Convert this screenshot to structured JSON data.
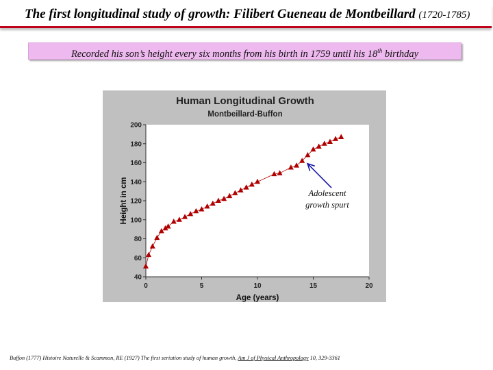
{
  "slide": {
    "title_main": "The first longitudinal study of growth:",
    "title_name": "Filibert Gueneau de Montbeillard",
    "title_years": "(1720-1785)",
    "subtitle_pre": "Recorded his son’s height every six months from his birth in 1759 until his 18",
    "subtitle_sup": "th",
    "subtitle_post": " birthday",
    "reference_pre": "Buffon (1777) Histoire Naturelle & Scammon, RE (1927) The first seriation study of human growth, ",
    "reference_journal": "Am J of Physical Anthropology",
    "reference_post": " 10, 329-3361"
  },
  "colors": {
    "chart_background": "#c0c0c0",
    "marker": "#b00000",
    "line": "#b00000",
    "arrow": "#1a1aa8",
    "title_rule": "#c0001a",
    "subtitle_box": "#eeb9ef"
  },
  "chart_data": {
    "type": "line",
    "title": "Human Longitudinal Growth",
    "subtitle": "Montbeillard-Buffon",
    "xlabel": "Age (years)",
    "ylabel": "Height in cm",
    "xlim": [
      0,
      20
    ],
    "ylim": [
      40,
      200
    ],
    "xticks": [
      0,
      5,
      10,
      15,
      20
    ],
    "yticks": [
      40,
      60,
      80,
      100,
      120,
      140,
      160,
      180,
      200
    ],
    "grid": false,
    "marker": "triangle",
    "series": [
      {
        "x": [
          0.0,
          0.25,
          0.6,
          1.0,
          1.4,
          1.75,
          2.0,
          2.5,
          3.0,
          3.5,
          4.0,
          4.5,
          5.0,
          5.5,
          6.0,
          6.5,
          7.0,
          7.5,
          8.0,
          8.5,
          9.0,
          9.5,
          10.0,
          11.5,
          12.0,
          13.0,
          13.5,
          14.0,
          14.5,
          15.0,
          15.5,
          16.0,
          16.5,
          17.0,
          17.5
        ],
        "y": [
          51,
          63,
          72,
          81,
          88,
          91,
          93,
          98,
          100,
          103,
          106,
          109,
          111,
          114,
          117,
          120,
          122,
          125,
          128,
          131,
          134,
          137,
          140,
          148,
          149,
          155,
          157,
          162,
          168,
          174,
          177,
          180,
          182,
          185,
          187
        ]
      }
    ],
    "annotation": {
      "text_line1": "Adolescent",
      "text_line2": "growth spurt",
      "points_to": [
        14.3,
        162
      ]
    }
  }
}
